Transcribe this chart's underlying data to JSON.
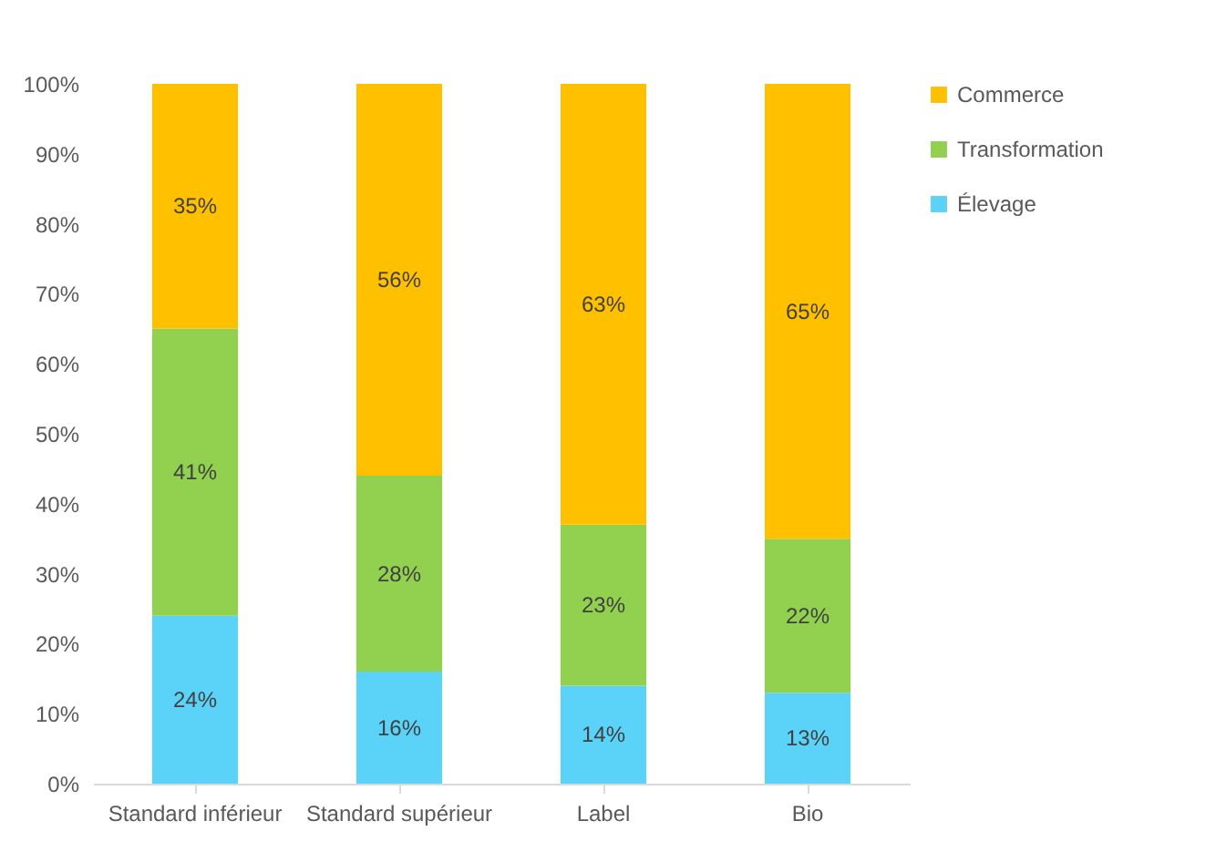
{
  "chart_data": {
    "type": "bar",
    "stacked": true,
    "categories": [
      "Standard inférieur",
      "Standard supérieur",
      "Label",
      "Bio"
    ],
    "series": [
      {
        "name": "Élevage",
        "color": "#5bd3f9",
        "values": [
          24,
          16,
          14,
          13
        ],
        "value_labels": [
          "24%",
          "16%",
          "14%",
          "13%"
        ]
      },
      {
        "name": "Transformation",
        "color": "#92d050",
        "values": [
          41,
          28,
          23,
          22
        ],
        "value_labels": [
          "41%",
          "28%",
          "23%",
          "22%"
        ]
      },
      {
        "name": "Commerce",
        "color": "#ffc000",
        "values": [
          35,
          56,
          63,
          65
        ],
        "value_labels": [
          "35%",
          "56%",
          "63%",
          "65%"
        ]
      }
    ],
    "ylim": [
      0,
      100
    ],
    "yticks": [
      {
        "value": 0,
        "label": "0%"
      },
      {
        "value": 10,
        "label": "10%"
      },
      {
        "value": 20,
        "label": "20%"
      },
      {
        "value": 30,
        "label": "30%"
      },
      {
        "value": 40,
        "label": "40%"
      },
      {
        "value": 50,
        "label": "50%"
      },
      {
        "value": 60,
        "label": "60%"
      },
      {
        "value": 70,
        "label": "70%"
      },
      {
        "value": 80,
        "label": "80%"
      },
      {
        "value": 90,
        "label": "90%"
      },
      {
        "value": 100,
        "label": "100%"
      }
    ],
    "grid": false,
    "legend": "right"
  }
}
